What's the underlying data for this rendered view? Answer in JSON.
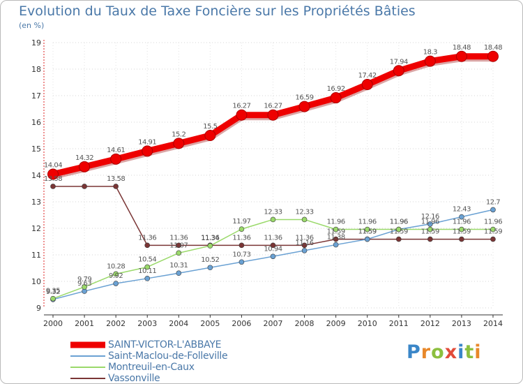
{
  "header": {
    "title": "Evolution du Taux de Taxe Foncière sur les Propriétés Bâties",
    "unit": "(en %)"
  },
  "logo": {
    "text": "Proxiti",
    "colors": [
      "#3a86c8",
      "#e8882a",
      "#8cbf3f",
      "#e24b3a",
      "#3a86c8",
      "#8cbf3f",
      "#e8882a"
    ]
  },
  "colors": {
    "saint_victor": "#ee0000",
    "saint_maclou": "#6aa1d3",
    "montreuil": "#9ad96a",
    "vassonville": "#7a3535"
  },
  "chart_data": {
    "type": "line",
    "title": "Evolution du Taux de Taxe Foncière sur les Propriétés Bâties",
    "ylabel": "(en %)",
    "xlabel": "",
    "x": [
      "2000",
      "2001",
      "2002",
      "2003",
      "2004",
      "2005",
      "2006",
      "2007",
      "2008",
      "2009",
      "2010",
      "2011",
      "2012",
      "2013",
      "2014"
    ],
    "ylim": [
      9,
      19
    ],
    "yticks": [
      "9",
      "10",
      "11",
      "12",
      "13",
      "14",
      "15",
      "16",
      "17",
      "18",
      "19"
    ],
    "legend_position": "bottom-left",
    "series": [
      {
        "name": "SAINT-VICTOR-L'ABBAYE",
        "color": "#ee0000",
        "values": [
          14.04,
          14.32,
          14.61,
          14.91,
          15.2,
          15.5,
          16.27,
          16.27,
          16.59,
          16.92,
          17.42,
          17.94,
          18.3,
          18.48,
          18.48
        ],
        "labels": [
          "14.04",
          "14.32",
          "14.61",
          "14.91",
          "15.2",
          "15.5",
          "16.27",
          "16.27",
          "16.59",
          "16.92",
          "17.42",
          "17.94",
          "18.3",
          "18.48",
          "18.48"
        ]
      },
      {
        "name": "Saint-Maclou-de-Folleville",
        "color": "#6aa1d3",
        "values": [
          9.32,
          9.63,
          9.92,
          10.11,
          10.31,
          10.52,
          10.73,
          10.94,
          11.16,
          11.38,
          11.59,
          11.96,
          12.16,
          12.43,
          12.7
        ],
        "labels": [
          "9.32",
          "9.63",
          "9.92",
          "10.11",
          "10.31",
          "10.52",
          "10.73",
          "10.94",
          "11.16",
          "11.38",
          "11.59",
          "11.96",
          "12.16",
          "12.43",
          "12.7"
        ]
      },
      {
        "name": "Montreuil-en-Caux",
        "color": "#9ad96a",
        "values": [
          9.35,
          9.79,
          10.28,
          10.54,
          11.07,
          11.34,
          11.97,
          12.33,
          12.33,
          11.96,
          11.96,
          11.96,
          11.96,
          11.96,
          11.96
        ],
        "labels": [
          "9.35",
          "9.79",
          "10.28",
          "10.54",
          "11.07",
          "11.34",
          "11.97",
          "12.33",
          "12.33",
          "11.96",
          "11.96",
          "11.96",
          "11.96",
          "11.96",
          "11.96"
        ]
      },
      {
        "name": "Vassonville",
        "color": "#7a3535",
        "values": [
          13.58,
          13.58,
          13.58,
          11.36,
          11.36,
          11.36,
          11.36,
          11.36,
          11.36,
          11.59,
          11.59,
          11.59,
          11.59,
          11.59,
          11.59
        ],
        "labels": [
          "13.58",
          "",
          "13.58",
          "11.36",
          "11.36",
          "11.36",
          "11.36",
          "11.36",
          "11.36",
          "11.59",
          "11.59",
          "11.59",
          "11.59",
          "11.59",
          "11.59"
        ]
      }
    ]
  }
}
